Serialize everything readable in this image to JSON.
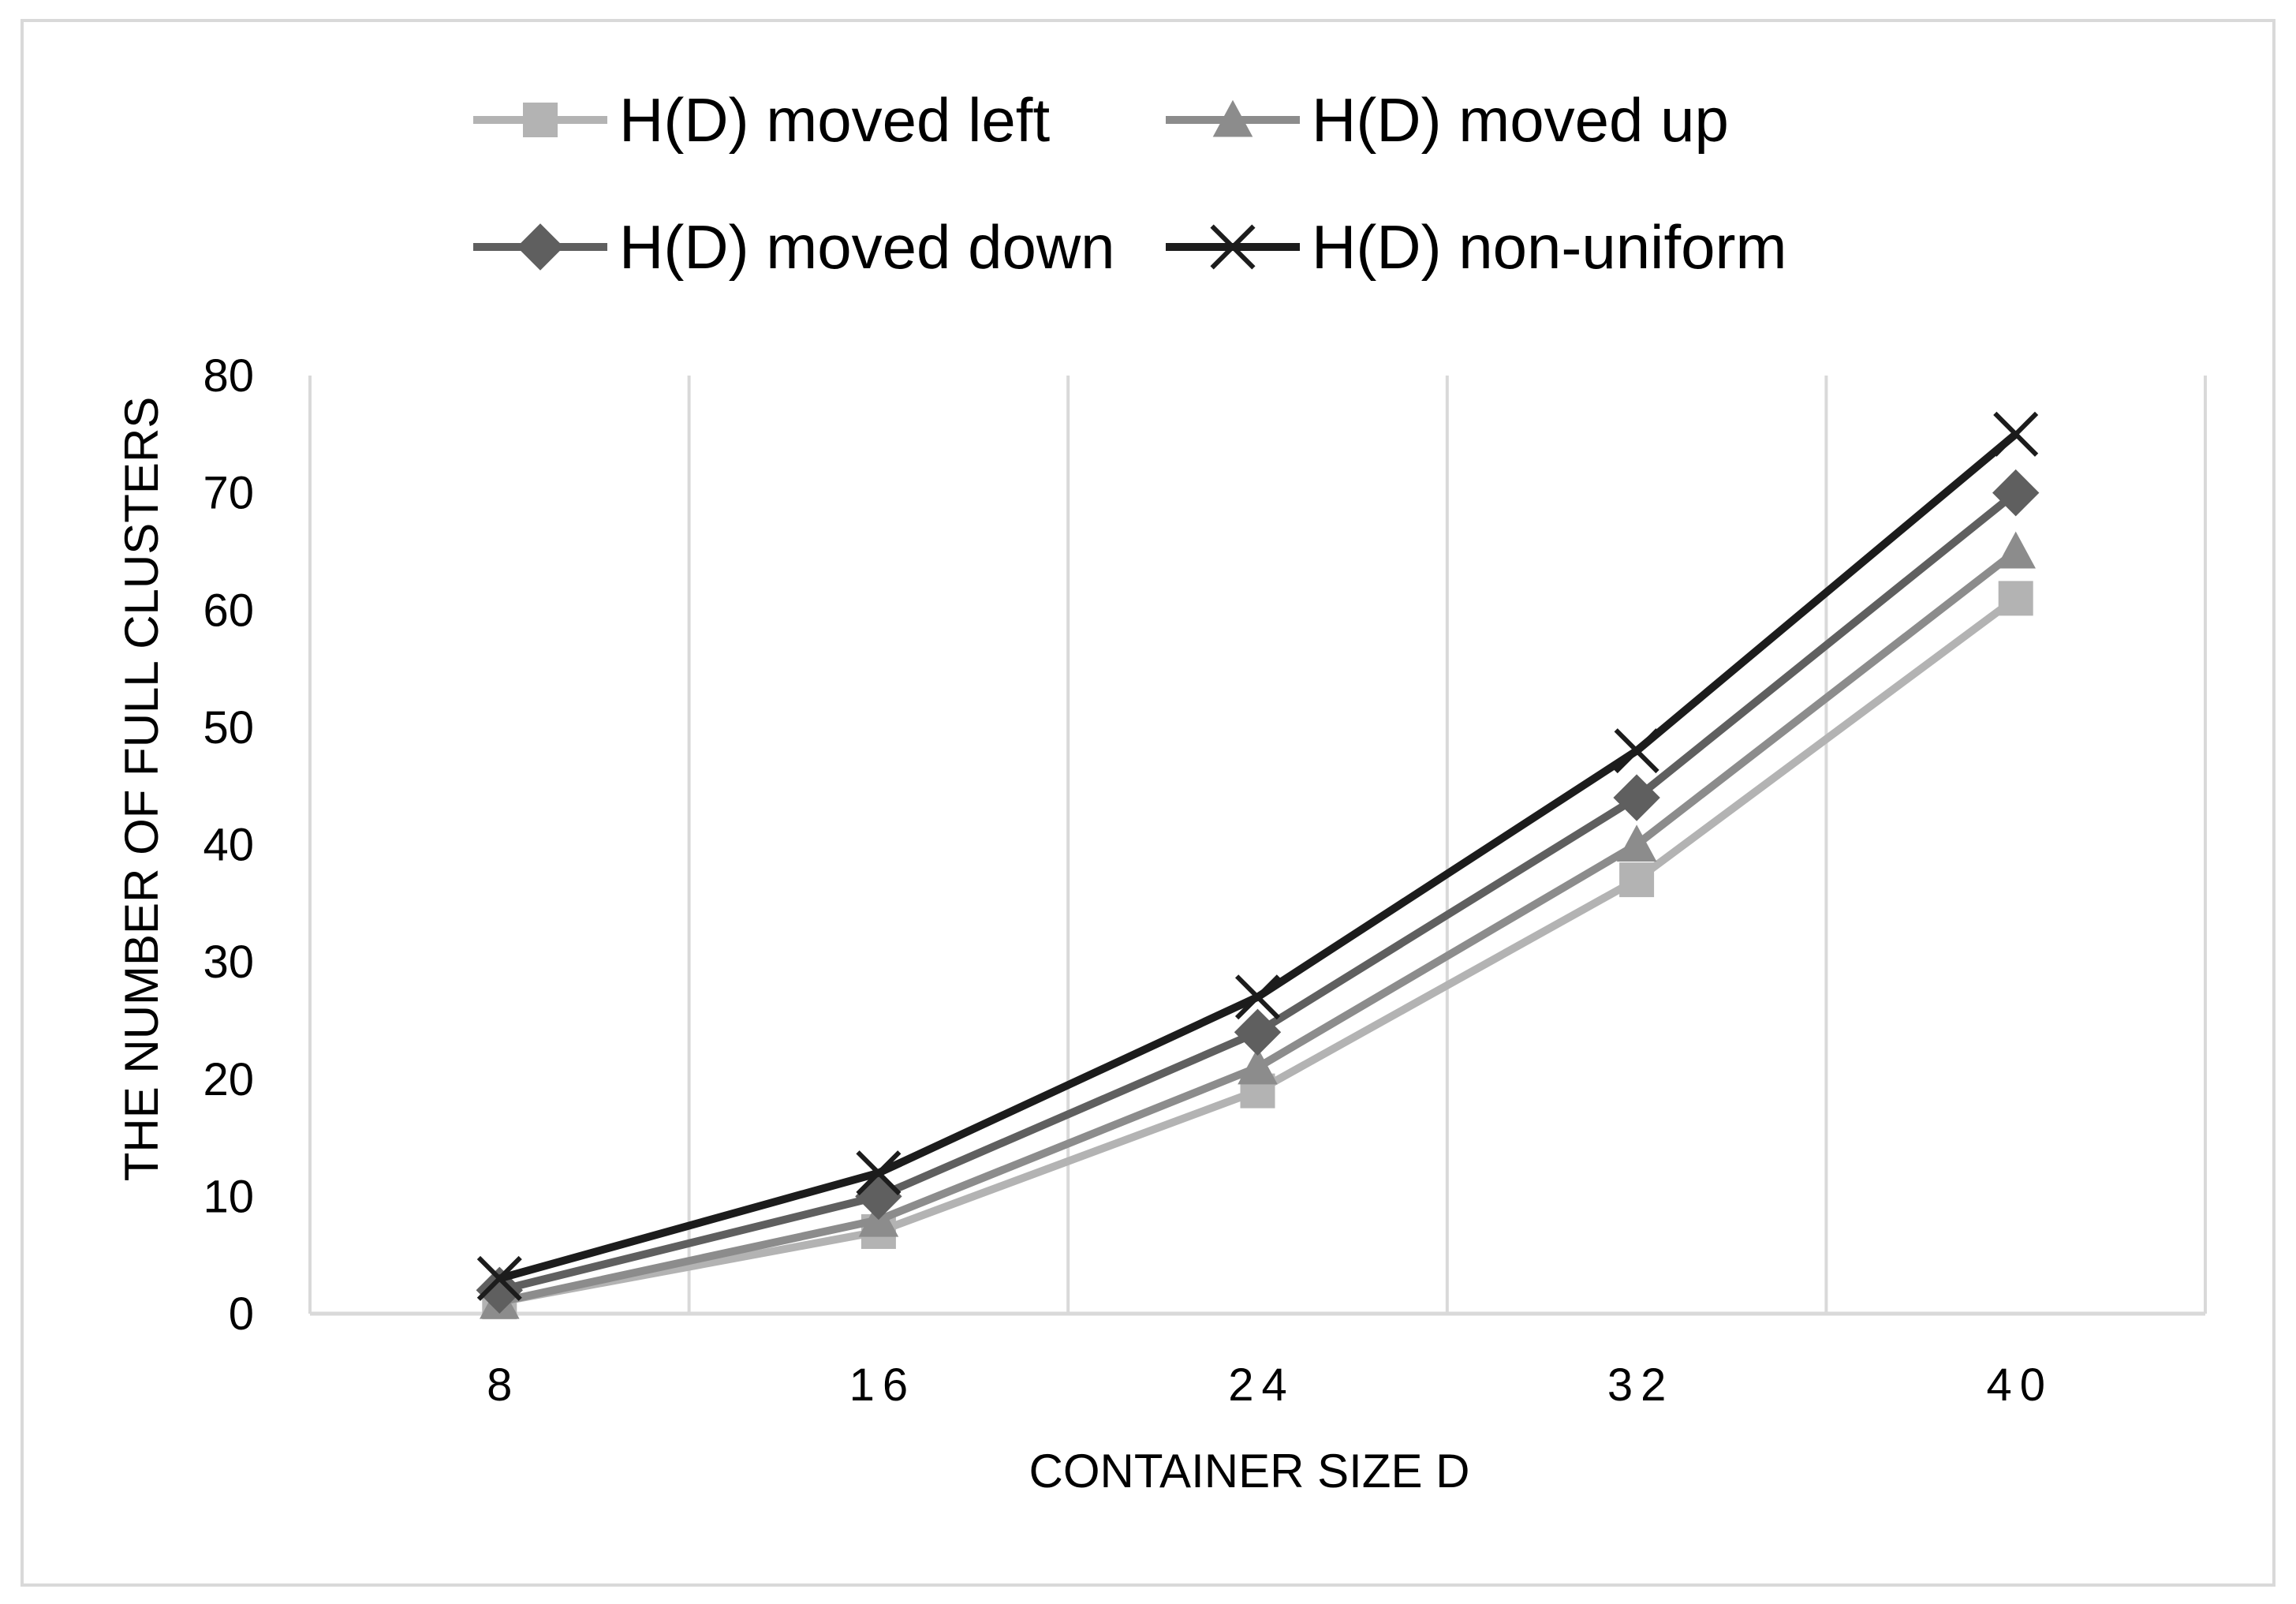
{
  "chart_data": {
    "type": "line",
    "title": "",
    "xlabel": "CONTAINER SIZE D",
    "ylabel": "THE NUMBER OF FULL CLUSTERS",
    "categories": [
      "8",
      "16",
      "24",
      "32",
      "40"
    ],
    "ylim": [
      0,
      80
    ],
    "yticks": [
      "0",
      "10",
      "20",
      "30",
      "40",
      "50",
      "60",
      "70",
      "80"
    ],
    "grid": "vertical",
    "legend_position": "top",
    "series": [
      {
        "name": "H(D) moved left",
        "marker": "square",
        "color": "#b3b3b3",
        "values": [
          1,
          7,
          19,
          37,
          61
        ]
      },
      {
        "name": "H(D) moved up",
        "marker": "triangle",
        "color": "#8c8c8c",
        "values": [
          1,
          8,
          21,
          40,
          65
        ]
      },
      {
        "name": "H(D) moved down",
        "marker": "diamond",
        "color": "#5f5f5f",
        "values": [
          2,
          10,
          24,
          44,
          70
        ]
      },
      {
        "name": "H(D) non-uniform",
        "marker": "x",
        "color": "#1c1c1c",
        "values": [
          3,
          12,
          27,
          48,
          75
        ]
      }
    ]
  }
}
